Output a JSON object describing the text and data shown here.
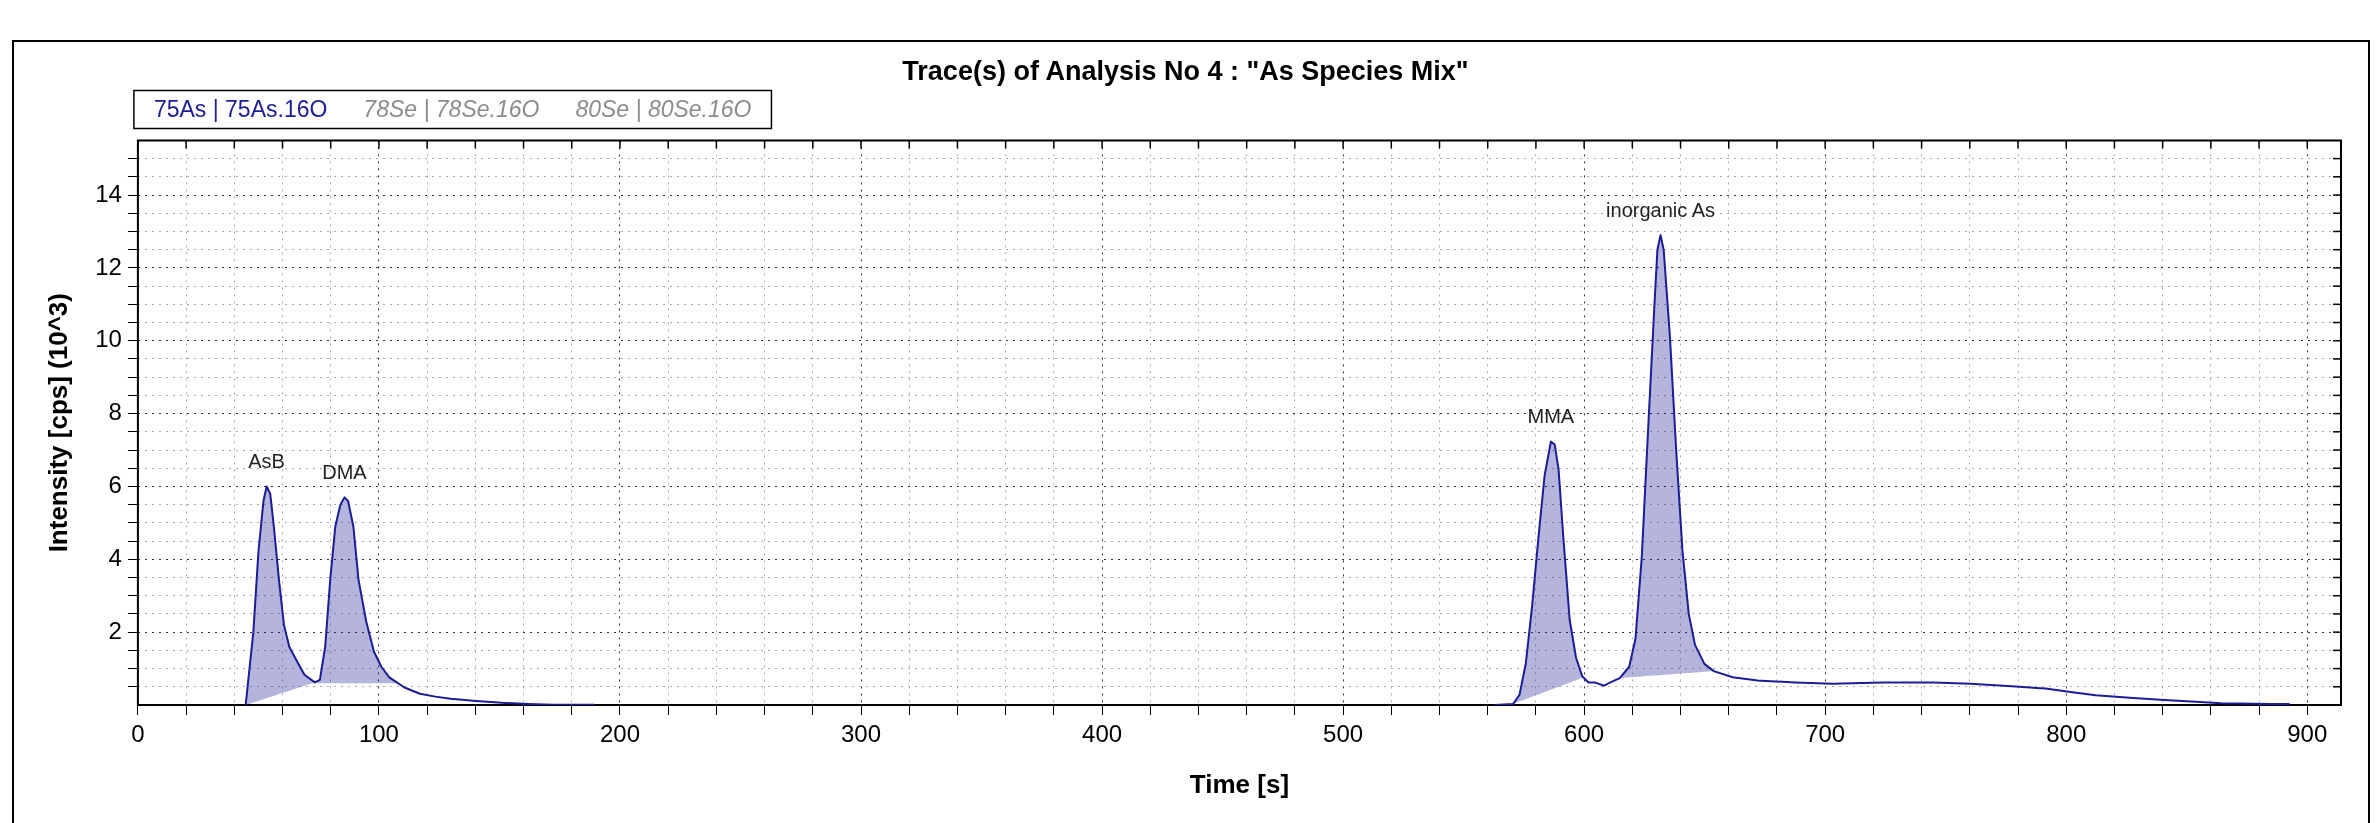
{
  "chart_data": {
    "type": "line",
    "title": "Trace(s) of Analysis No 4 : \"As Species Mix\"",
    "xlabel": "Time [s]",
    "ylabel": "Intensity [cps] (10^3)",
    "xlim": [
      0,
      914
    ],
    "ylim": [
      0,
      15.5
    ],
    "xticks": [
      0,
      {
        "value": 20,
        "label": null
      },
      {
        "value": 40,
        "label": null
      },
      {
        "value": 60,
        "label": null
      },
      {
        "value": 80,
        "label": null
      },
      100,
      {
        "value": 120,
        "label": null
      },
      {
        "value": 140,
        "label": null
      },
      {
        "value": 160,
        "label": null
      },
      {
        "value": 180,
        "label": null
      },
      200,
      {
        "value": 220,
        "label": null
      },
      {
        "value": 240,
        "label": null
      },
      {
        "value": 260,
        "label": null
      },
      {
        "value": 280,
        "label": null
      },
      300,
      {
        "value": 320,
        "label": null
      },
      {
        "value": 340,
        "label": null
      },
      {
        "value": 360,
        "label": null
      },
      {
        "value": 380,
        "label": null
      },
      400,
      {
        "value": 420,
        "label": null
      },
      {
        "value": 440,
        "label": null
      },
      {
        "value": 460,
        "label": null
      },
      {
        "value": 480,
        "label": null
      },
      500,
      {
        "value": 520,
        "label": null
      },
      {
        "value": 540,
        "label": null
      },
      {
        "value": 560,
        "label": null
      },
      {
        "value": 580,
        "label": null
      },
      600,
      {
        "value": 620,
        "label": null
      },
      {
        "value": 640,
        "label": null
      },
      {
        "value": 660,
        "label": null
      },
      {
        "value": 680,
        "label": null
      },
      700,
      {
        "value": 720,
        "label": null
      },
      {
        "value": 740,
        "label": null
      },
      {
        "value": 760,
        "label": null
      },
      {
        "value": 780,
        "label": null
      },
      800,
      {
        "value": 820,
        "label": null
      },
      {
        "value": 840,
        "label": null
      },
      {
        "value": 860,
        "label": null
      },
      {
        "value": 880,
        "label": null
      },
      900
    ],
    "yticks": [
      {
        "value": 0.5,
        "label": null
      },
      {
        "value": 1,
        "label": null
      },
      {
        "value": 1.5,
        "label": null
      },
      2,
      {
        "value": 2.5,
        "label": null
      },
      {
        "value": 3,
        "label": null
      },
      {
        "value": 3.5,
        "label": null
      },
      4,
      {
        "value": 4.5,
        "label": null
      },
      {
        "value": 5,
        "label": null
      },
      {
        "value": 5.5,
        "label": null
      },
      6,
      {
        "value": 6.5,
        "label": null
      },
      {
        "value": 7,
        "label": null
      },
      {
        "value": 7.5,
        "label": null
      },
      8,
      {
        "value": 8.5,
        "label": null
      },
      {
        "value": 9,
        "label": null
      },
      {
        "value": 9.5,
        "label": null
      },
      10,
      {
        "value": 10.5,
        "label": null
      },
      {
        "value": 11,
        "label": null
      },
      {
        "value": 11.5,
        "label": null
      },
      12,
      {
        "value": 12.5,
        "label": null
      },
      {
        "value": 13,
        "label": null
      },
      {
        "value": 13.5,
        "label": null
      },
      14,
      {
        "value": 14.5,
        "label": null
      },
      {
        "value": 15,
        "label": null
      }
    ],
    "grid": true,
    "legend": "top left",
    "marker": "none",
    "line_style": "solid",
    "annotations": [
      {
        "text": "AsB",
        "x": 53.4,
        "y": 6.0
      },
      {
        "text": "DMA",
        "x": 85.7,
        "y": 5.7
      },
      {
        "text": "MMA",
        "x": 586.2,
        "y": 7.23
      },
      {
        "text": "inorganic As",
        "x": 631.7,
        "y": 12.9
      }
    ],
    "series": [
      {
        "name": "75As | 75As.16O",
        "color": "#1c1c96",
        "x": [
          44.7,
          47.9,
          50,
          52.1,
          53.4,
          54.9,
          56.4,
          58.5,
          60.6,
          62.8,
          66,
          69.1,
          73.4,
          75.5,
          77.7,
          79.8,
          81.9,
          84,
          85.7,
          87.2,
          89.4,
          91.5,
          94.7,
          97.9,
          101,
          104.3,
          107.4,
          110.6,
          117,
          123.4,
          129.8,
          140.4,
          151,
          161.7,
          172.3,
          189.4,
          375,
          562.9,
          570.6,
          573.2,
          575.8,
          578.4,
          581,
          583.6,
          586.2,
          587.8,
          589.4,
          591.4,
          594,
          596.6,
          599.2,
          601.8,
          604.4,
          608.3,
          610.9,
          614.8,
          618.7,
          621.3,
          623.9,
          626.5,
          629.1,
          630.4,
          631.7,
          633,
          635.6,
          638.2,
          640.8,
          643.4,
          646,
          649.9,
          653.8,
          661.6,
          672,
          687.5,
          703.1,
          723.9,
          744.7,
          760.3,
          775.8,
          791.4,
          801.8,
          812.2,
          827.8,
          840.8,
          853.8,
          864.2,
          885,
          892.7
        ],
        "values": [
          0,
          2.0,
          4.2,
          5.6,
          6.0,
          5.8,
          4.9,
          3.45,
          2.2,
          1.6,
          1.2,
          0.83,
          0.62,
          0.69,
          1.6,
          3.45,
          4.9,
          5.5,
          5.7,
          5.6,
          4.9,
          3.45,
          2.3,
          1.47,
          1.05,
          0.76,
          0.62,
          0.48,
          0.31,
          0.23,
          0.17,
          0.11,
          0.06,
          0.03,
          0.01,
          0.01,
          null,
          0,
          0.03,
          0.28,
          1.14,
          2.7,
          4.57,
          6.3,
          7.23,
          7.15,
          6.46,
          4.57,
          2.34,
          1.31,
          0.79,
          0.62,
          0.62,
          0.53,
          0.62,
          0.74,
          1.05,
          1.82,
          4.05,
          7.5,
          10.9,
          12.5,
          12.9,
          12.5,
          10.1,
          6.98,
          4.23,
          2.5,
          1.65,
          1.13,
          0.93,
          0.76,
          0.67,
          0.62,
          0.58,
          0.62,
          0.62,
          0.58,
          0.52,
          0.45,
          0.36,
          0.27,
          0.19,
          0.14,
          0.09,
          0.05,
          0.03,
          0.03
        ],
        "lower": [
          0,
          0.07,
          0.11,
          0.16,
          0.19,
          0.22,
          0.25,
          0.3,
          0.34,
          0.39,
          0.46,
          0.53,
          0.62,
          0.6,
          0.6,
          0.6,
          0.6,
          0.6,
          0.6,
          0.6,
          0.6,
          0.6,
          0.6,
          0.6,
          0.6,
          0.6,
          0.6,
          null,
          null,
          null,
          null,
          null,
          null,
          null,
          null,
          null,
          null,
          null,
          0.03,
          0.1,
          0.16,
          0.23,
          0.29,
          0.36,
          0.42,
          0.46,
          0.5,
          0.55,
          0.62,
          0.68,
          0.75,
          null,
          null,
          null,
          null,
          0.74,
          0.76,
          0.77,
          0.78,
          0.8,
          0.81,
          0.82,
          0.82,
          0.83,
          0.84,
          0.86,
          0.87,
          0.88,
          0.89,
          0.91,
          0.93,
          null,
          null,
          null,
          null,
          null,
          null,
          null,
          null,
          null,
          null,
          null,
          null,
          null,
          null,
          null,
          null,
          null
        ],
        "upper": [
          0,
          2.0,
          4.2,
          5.6,
          6.0,
          5.8,
          4.9,
          3.45,
          2.2,
          1.6,
          1.2,
          0.83,
          0.62,
          0.69,
          1.6,
          3.45,
          4.9,
          5.5,
          5.7,
          5.6,
          4.9,
          3.45,
          2.3,
          1.47,
          1.05,
          0.76,
          0.62,
          null,
          null,
          null,
          null,
          null,
          null,
          null,
          null,
          null,
          null,
          null,
          0.03,
          0.28,
          1.14,
          2.7,
          4.57,
          6.3,
          7.23,
          7.15,
          6.46,
          4.57,
          2.34,
          1.31,
          0.79,
          null,
          null,
          null,
          null,
          0.74,
          1.05,
          1.82,
          4.05,
          7.5,
          10.9,
          12.5,
          12.9,
          12.5,
          10.1,
          6.98,
          4.23,
          2.5,
          1.65,
          1.13,
          0.93,
          null,
          null,
          null,
          null,
          null,
          null,
          null,
          null,
          null,
          null,
          null,
          null,
          null,
          null,
          null,
          null,
          null
        ]
      },
      {
        "name": "78Se | 78Se.16O",
        "color": "#8c8c8c"
      },
      {
        "name": "80Se | 80Se.16O",
        "color": "#8c8c8c"
      }
    ]
  }
}
